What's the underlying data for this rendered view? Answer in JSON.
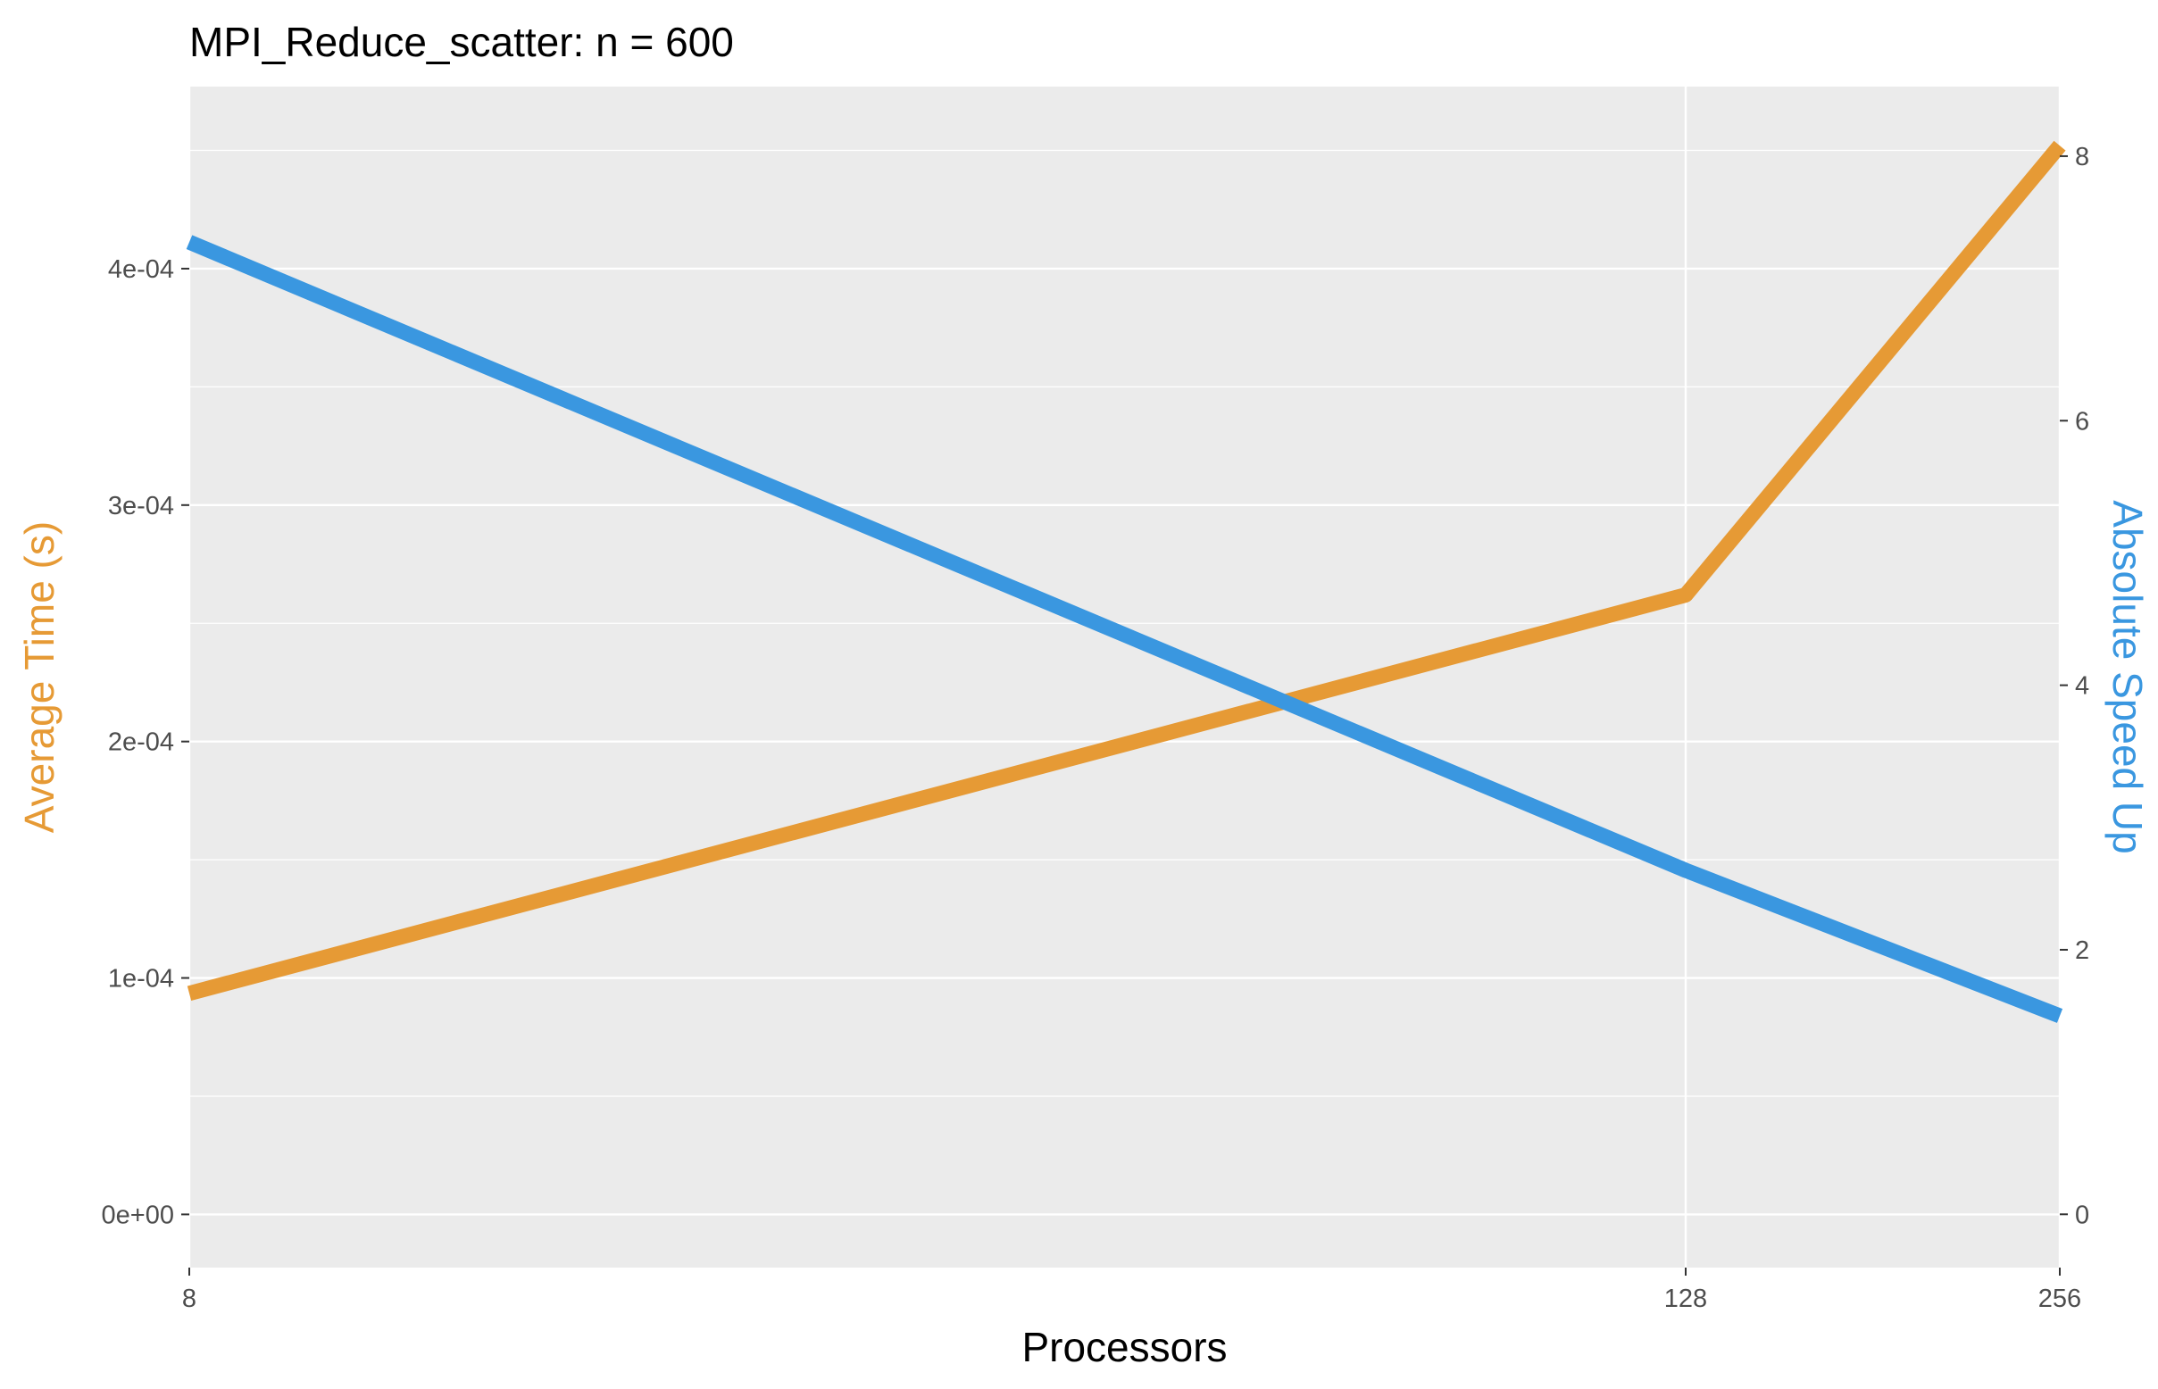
{
  "chart_data": {
    "type": "line",
    "title": "MPI_Reduce_scatter: n = 600",
    "xlabel": "Processors",
    "ylabel_left": "Average Time (s)",
    "ylabel_right": "Absolute Speed Up",
    "x_scale": "log2",
    "x_ticks": [
      8,
      128,
      256
    ],
    "x_tick_labels": [
      "8",
      "128",
      "256"
    ],
    "y_left_ticks": [
      0,
      0.0001,
      0.0002,
      0.0003,
      0.0004
    ],
    "y_left_tick_labels": [
      "0e+00",
      "1e-04",
      "2e-04",
      "3e-04",
      "4e-04"
    ],
    "y_left_lim": [
      -2.25e-05,
      0.000477
    ],
    "y_right_ticks": [
      0,
      2,
      4,
      6,
      8
    ],
    "y_right_tick_labels": [
      "0",
      "2",
      "4",
      "6",
      "8"
    ],
    "y_right_lim": [
      -0.403,
      8.526
    ],
    "grid": true,
    "legend": "none",
    "series": [
      {
        "axis": "left",
        "color": "#E69A35",
        "x": [
          8,
          128,
          256
        ],
        "y": [
          9.35e-05,
          0.000262,
          0.000452
        ]
      },
      {
        "axis": "right",
        "color": "#3A97E0",
        "x": [
          8,
          128,
          256
        ],
        "y": [
          7.35,
          2.6,
          1.5
        ]
      }
    ],
    "colors": {
      "panel_background": "#EBEBEB",
      "grid": "#FFFFFF",
      "left_axis_title": "#E69A35",
      "right_axis_title": "#3A97E0"
    }
  }
}
